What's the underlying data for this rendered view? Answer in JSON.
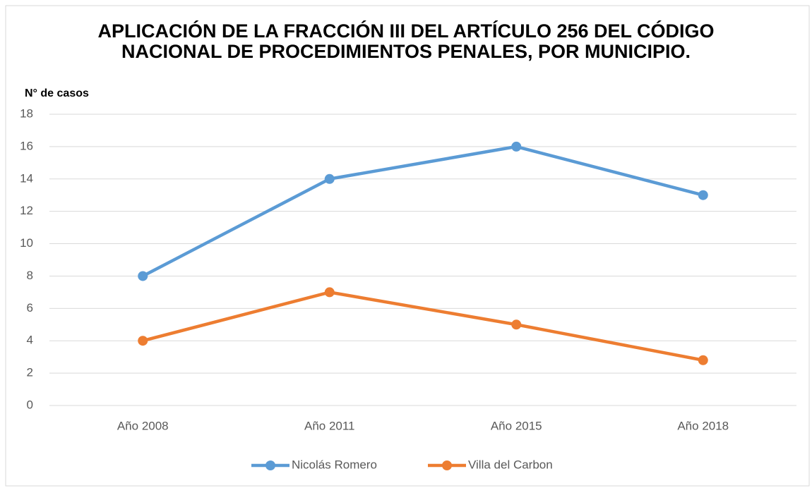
{
  "chart_data": {
    "type": "line",
    "title": "APLICACIÓN DE LA FRACCIÓN III DEL ARTÍCULO 256 DEL CÓDIGO NACIONAL DE PROCEDIMIENTOS PENALES, POR MUNICIPIO.",
    "y_label": "N° de casos",
    "categories": [
      "Año 2008",
      "Año 2011",
      "Año 2015",
      "Año 2018"
    ],
    "series": [
      {
        "name": "Nicolás Romero",
        "color": "#5b9bd5",
        "values": [
          8,
          14,
          16,
          13
        ]
      },
      {
        "name": "Villa del Carbon",
        "color": "#ed7d31",
        "values": [
          4,
          7,
          5,
          2.8
        ]
      }
    ],
    "ylim": [
      0,
      18
    ],
    "yticks": [
      0,
      2,
      4,
      6,
      8,
      10,
      12,
      14,
      16,
      18
    ],
    "grid": true,
    "legend": "bottom"
  }
}
